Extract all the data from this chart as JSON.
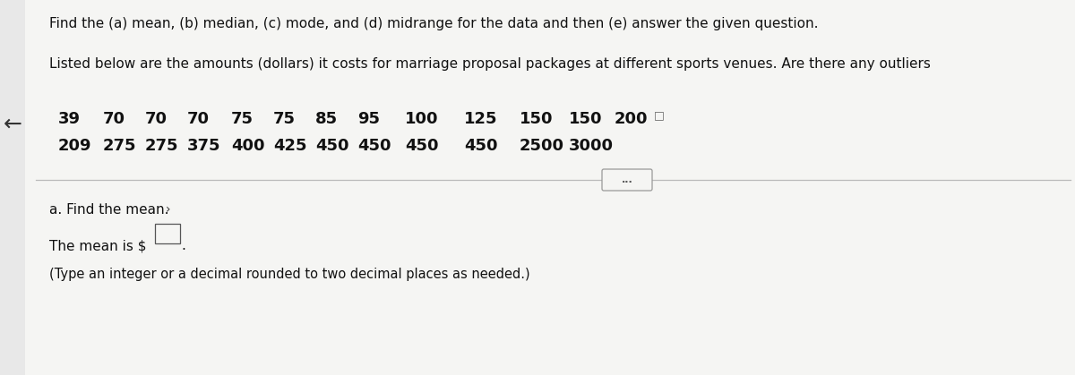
{
  "bg_color": "#e8e8e8",
  "panel_color": "#f5f5f3",
  "title_text": "Find the (a) mean, (b) median, (c) mode, and (d) midrange for the data and then (e) answer the given question.",
  "subtitle_text": "Listed below are the amounts (dollars) it costs for marriage proposal packages at different sports venues. Are there any outliers",
  "row1_nums": [
    "39",
    "70",
    "70",
    "70",
    "75",
    "75",
    "85",
    "95",
    "100",
    "125",
    "150",
    "150",
    "200"
  ],
  "row2_nums": [
    "209",
    "275",
    "275",
    "375",
    "400",
    "425",
    "450",
    "450",
    "450",
    "450",
    "2500",
    "3000"
  ],
  "dots_label": "...",
  "section_a_title": "a. Find the mean.",
  "chevron": "›",
  "mean_label": "The mean is $",
  "input_hint": "(Type an integer or a decimal rounded to two decimal places as needed.)",
  "arrow_symbol": "←",
  "title_fontsize": 11.0,
  "subtitle_fontsize": 11.0,
  "data_fontsize": 13.0,
  "section_fontsize": 11.0,
  "input_fontsize": 11.0
}
